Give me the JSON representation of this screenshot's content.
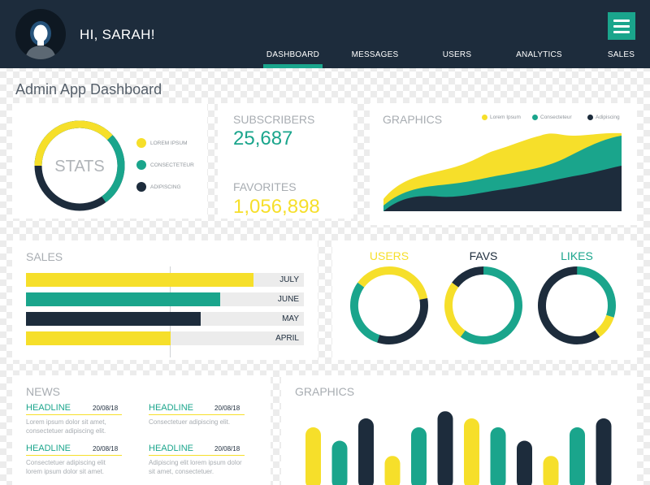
{
  "header": {
    "greeting": "HI, SARAH!",
    "nav": [
      "DASHBOARD",
      "MESSAGES",
      "USERS",
      "ANALYTICS",
      "SALES"
    ],
    "active_nav": "DASHBOARD"
  },
  "page_title": "Admin App Dashboard",
  "stats": {
    "center_label": "STATS",
    "legend": [
      "LOREM IPSUM",
      "CONSECTETEUR",
      "ADIPISCING"
    ],
    "segments": [
      0.38,
      0.27,
      0.35
    ]
  },
  "counters": {
    "subscribers_label": "SUBSCRIBERS",
    "subscribers_value": "25,687",
    "favorites_label": "FAVORITES",
    "favorites_value": "1,056,898"
  },
  "graphics_top": {
    "title": "GRAPHICS",
    "legend": [
      "Lorem Ipsum",
      "Consecteteur",
      "Adipiscing"
    ]
  },
  "sales": {
    "title": "SALES",
    "rows": [
      {
        "label": "JULY",
        "fraction": 0.82,
        "color": "#f6df2a"
      },
      {
        "label": "JUNE",
        "fraction": 0.7,
        "color": "#1aa58c"
      },
      {
        "label": "MAY",
        "fraction": 0.63,
        "color": "#1d2c3c"
      },
      {
        "label": "APRIL",
        "fraction": 0.52,
        "color": "#f6df2a"
      }
    ]
  },
  "rings": [
    {
      "label": "USERS",
      "label_color": "#f6df2a",
      "segments": [
        {
          "color": "#f6df2a",
          "frac": 0.22
        },
        {
          "color": "#1d2c3c",
          "frac": 0.33
        },
        {
          "color": "#1aa58c",
          "frac": 0.3
        },
        {
          "color": "#f6df2a",
          "frac": 0.15
        }
      ]
    },
    {
      "label": "FAVS",
      "label_color": "#1d2c3c",
      "segments": [
        {
          "color": "#1aa58c",
          "frac": 0.6
        },
        {
          "color": "#f6df2a",
          "frac": 0.25
        },
        {
          "color": "#1d2c3c",
          "frac": 0.15
        }
      ]
    },
    {
      "label": "LIKES",
      "label_color": "#1aa58c",
      "segments": [
        {
          "color": "#1aa58c",
          "frac": 0.3
        },
        {
          "color": "#f6df2a",
          "frac": 0.1
        },
        {
          "color": "#1d2c3c",
          "frac": 0.6
        }
      ]
    }
  ],
  "news": {
    "title": "NEWS",
    "items": [
      {
        "headline": "HEADLINE",
        "date": "20/08/18",
        "body": "Lorem ipsum dolor sit amet, consectetuer adipiscing elit."
      },
      {
        "headline": "HEADLINE",
        "date": "20/08/18",
        "body": "Consectetuer adipiscing elit."
      },
      {
        "headline": "HEADLINE",
        "date": "20/08/18",
        "body": "Consectetuer adipiscing elit lorem ipsum dolor sit amet."
      },
      {
        "headline": "HEADLINE",
        "date": "20/08/18",
        "body": "Adipiscing elit lorem ipsum dolor sit amet, consectetuer."
      }
    ]
  },
  "graphics_bottom": {
    "title": "GRAPHICS",
    "values": [
      0.6,
      0.45,
      0.7,
      0.28,
      0.6,
      0.78,
      0.7,
      0.6,
      0.45,
      0.28,
      0.6,
      0.7
    ],
    "colors": [
      "#f6df2a",
      "#1aa58c",
      "#1d2c3c",
      "#f6df2a",
      "#1aa58c",
      "#1d2c3c",
      "#f6df2a",
      "#1aa58c",
      "#1d2c3c",
      "#f6df2a",
      "#1aa58c",
      "#1d2c3c"
    ]
  },
  "colors": {
    "yellow": "#f6df2a",
    "teal": "#1aa58c",
    "navy": "#1d2c3c"
  }
}
